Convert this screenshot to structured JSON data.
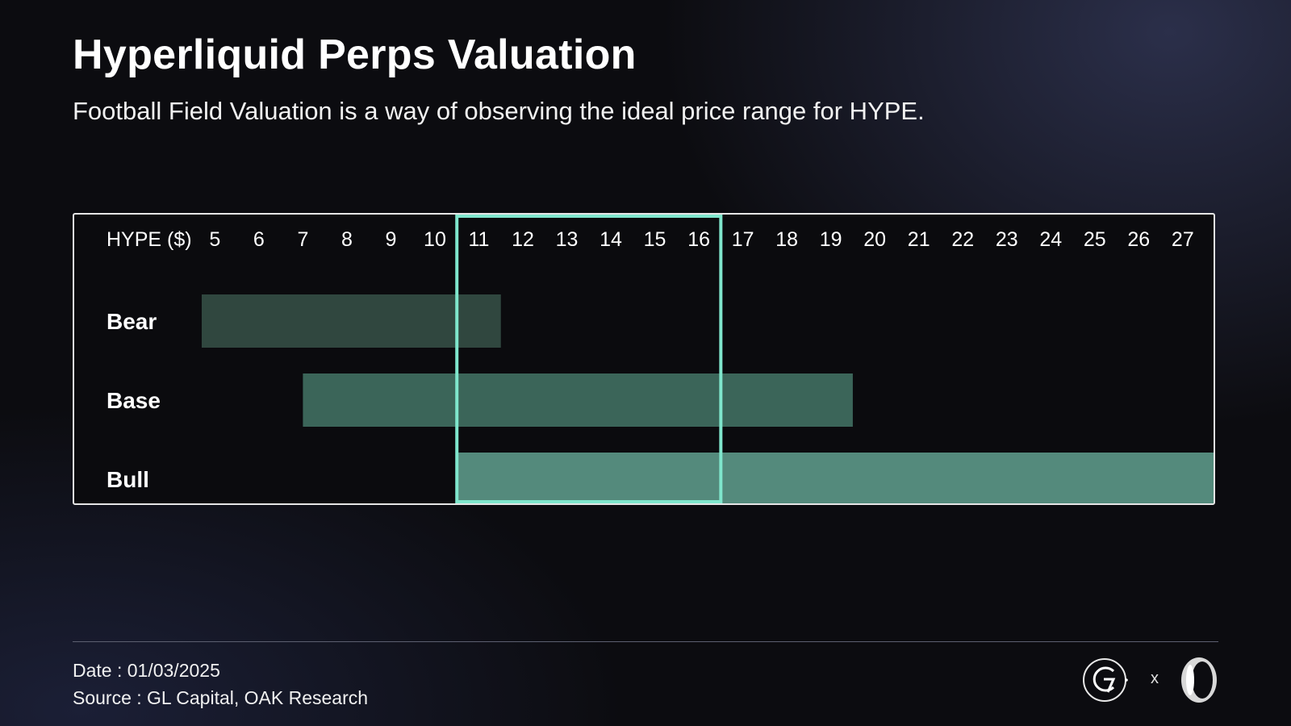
{
  "header": {
    "title": "Hyperliquid Perps Valuation",
    "subtitle": "Football Field Valuation is a way of observing the ideal price range for HYPE."
  },
  "chart_data": {
    "type": "football-field",
    "axis_title": "HYPE ($)",
    "ticks": [
      5,
      6,
      7,
      8,
      9,
      10,
      11,
      12,
      13,
      14,
      15,
      16,
      17,
      18,
      19,
      20,
      21,
      22,
      23,
      24,
      25,
      26,
      27
    ],
    "xlim": [
      4.7,
      27.7
    ],
    "rows": [
      {
        "name": "Bear",
        "low": 4.7,
        "high": 11.5,
        "color": "#30473f"
      },
      {
        "name": "Base",
        "low": 7.0,
        "high": 19.5,
        "color": "#3b6559"
      },
      {
        "name": "Bull",
        "low": 10.5,
        "high": 27.7,
        "color": "#548a7c"
      }
    ],
    "highlight_range": {
      "low": 10.5,
      "high": 16.5,
      "color": "#7fe6cc"
    }
  },
  "footer": {
    "date": "Date : 01/03/2025",
    "source": "Source : GL Capital, OAK Research",
    "logo_separator": "x"
  },
  "icons": {
    "left_logo": "gl-capital-logo-icon",
    "right_logo": "oak-research-logo-icon"
  }
}
